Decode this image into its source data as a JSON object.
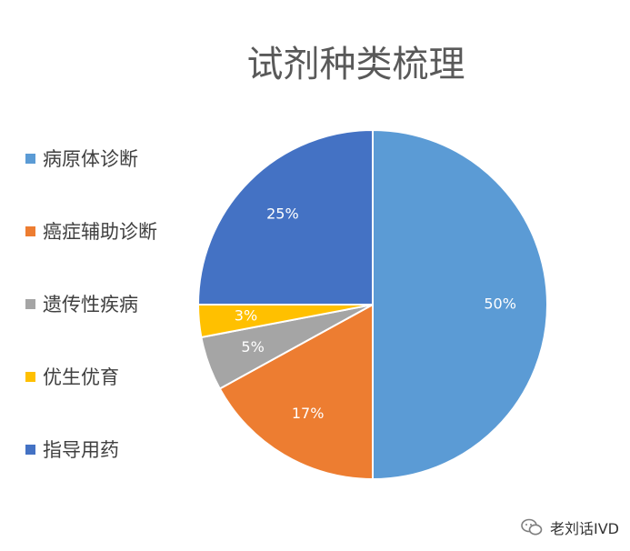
{
  "chart_data": {
    "type": "pie",
    "title": "试剂种类梳理",
    "categories": [
      "病原体诊断",
      "癌症辅助诊断",
      "遗传性疾病",
      "优生优育",
      "指导用药"
    ],
    "values": [
      50,
      17,
      5,
      3,
      25
    ],
    "labels": [
      "50%",
      "17%",
      "5%",
      "3%",
      "25%"
    ],
    "colors": [
      "#5B9BD5",
      "#ED7D31",
      "#A5A5A5",
      "#FFC000",
      "#4472C4"
    ],
    "legend": "left"
  },
  "watermark": {
    "text": "老刘话IVD",
    "icon": "wechat-icon"
  }
}
